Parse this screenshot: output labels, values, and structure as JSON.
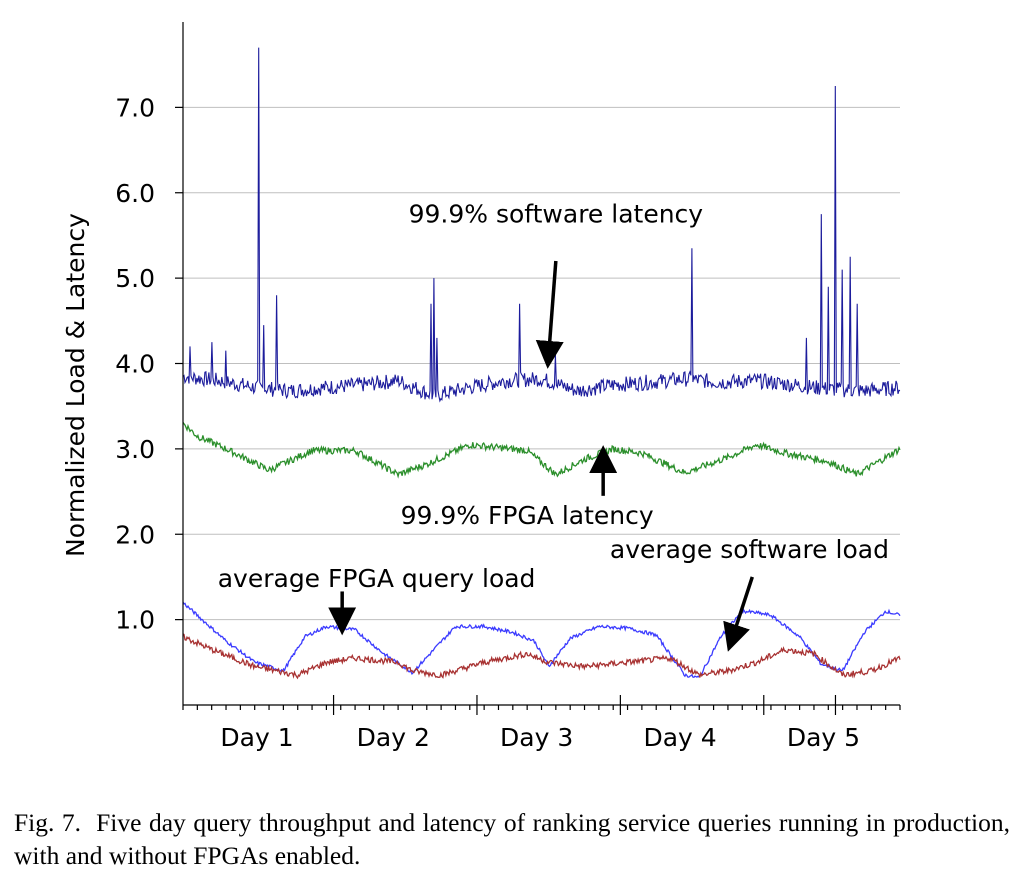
{
  "chart_data": {
    "type": "line",
    "ylabel": "Normalized Load & Latency",
    "xlabel": "",
    "ylim": [
      0,
      8.0
    ],
    "y_ticks": [
      "1.0",
      "2.0",
      "3.0",
      "4.0",
      "5.0",
      "6.0",
      "7.0"
    ],
    "y_tick_values": [
      1.0,
      2.0,
      3.0,
      4.0,
      5.0,
      6.0,
      7.0
    ],
    "x_range": [
      0,
      5.0
    ],
    "x_ticks": [
      "Day 1",
      "Day 2",
      "Day 3",
      "Day 4",
      "Day 5"
    ],
    "x_tick_values": [
      0.6,
      1.55,
      2.55,
      3.55,
      4.55
    ],
    "grid": true,
    "series": [
      {
        "name": "99.9% software latency",
        "color": "#1c1c9c",
        "x": [
          0,
          0.25,
          0.5,
          0.75,
          1.0,
          1.25,
          1.5,
          1.75,
          2.0,
          2.25,
          2.5,
          2.75,
          3.0,
          3.25,
          3.5,
          3.75,
          4.0,
          4.25,
          4.5,
          4.75,
          5.0
        ],
        "values": [
          3.85,
          3.8,
          3.72,
          3.68,
          3.72,
          3.75,
          3.8,
          3.62,
          3.72,
          3.8,
          3.82,
          3.68,
          3.75,
          3.78,
          3.82,
          3.78,
          3.8,
          3.75,
          3.7,
          3.68,
          3.72
        ],
        "spikes": [
          {
            "x": 0.53,
            "y": 7.7
          },
          {
            "x": 0.56,
            "y": 4.45
          },
          {
            "x": 0.65,
            "y": 4.8
          },
          {
            "x": 0.2,
            "y": 4.25
          },
          {
            "x": 0.05,
            "y": 4.2
          },
          {
            "x": 0.3,
            "y": 4.15
          },
          {
            "x": 1.75,
            "y": 5.0
          },
          {
            "x": 1.73,
            "y": 4.7
          },
          {
            "x": 1.77,
            "y": 4.3
          },
          {
            "x": 2.35,
            "y": 4.7
          },
          {
            "x": 2.6,
            "y": 4.1
          },
          {
            "x": 3.55,
            "y": 5.35
          },
          {
            "x": 4.45,
            "y": 5.75
          },
          {
            "x": 4.55,
            "y": 7.25
          },
          {
            "x": 4.6,
            "y": 5.1
          },
          {
            "x": 4.65,
            "y": 5.25
          },
          {
            "x": 4.7,
            "y": 4.7
          },
          {
            "x": 4.5,
            "y": 4.9
          },
          {
            "x": 4.35,
            "y": 4.3
          }
        ]
      },
      {
        "name": "99.9% FPGA latency",
        "color": "#2b8f2b",
        "x": [
          0,
          0.1,
          0.3,
          0.6,
          0.9,
          1.2,
          1.5,
          1.7,
          2.0,
          2.4,
          2.6,
          2.8,
          3.0,
          3.2,
          3.5,
          3.8,
          4.0,
          4.2,
          4.5,
          4.7,
          5.0
        ],
        "values": [
          3.3,
          3.15,
          3.0,
          2.75,
          2.98,
          2.98,
          2.7,
          2.82,
          3.05,
          2.98,
          2.7,
          2.88,
          3.0,
          2.95,
          2.72,
          2.9,
          3.05,
          2.95,
          2.85,
          2.7,
          3.0
        ]
      },
      {
        "name": "average FPGA query load",
        "color": "#3b3bff",
        "x": [
          0,
          0.1,
          0.3,
          0.5,
          0.7,
          0.85,
          1.0,
          1.2,
          1.4,
          1.6,
          1.75,
          1.9,
          2.1,
          2.3,
          2.45,
          2.55,
          2.7,
          2.9,
          3.1,
          3.3,
          3.5,
          3.6,
          3.75,
          3.9,
          4.0,
          4.1,
          4.3,
          4.45,
          4.6,
          4.75,
          4.9,
          5.0
        ],
        "values": [
          1.2,
          1.05,
          0.75,
          0.5,
          0.4,
          0.8,
          0.92,
          0.88,
          0.6,
          0.38,
          0.65,
          0.92,
          0.92,
          0.85,
          0.75,
          0.45,
          0.78,
          0.92,
          0.9,
          0.82,
          0.35,
          0.32,
          0.8,
          1.1,
          1.08,
          1.05,
          0.8,
          0.48,
          0.4,
          0.85,
          1.1,
          1.05
        ]
      },
      {
        "name": "average software load",
        "color": "#a83232",
        "x": [
          0,
          0.2,
          0.5,
          0.8,
          1.0,
          1.2,
          1.5,
          1.6,
          1.8,
          2.1,
          2.4,
          2.55,
          2.8,
          3.1,
          3.4,
          3.6,
          3.8,
          4.0,
          4.2,
          4.4,
          4.6,
          4.8,
          5.0
        ],
        "values": [
          0.8,
          0.65,
          0.45,
          0.35,
          0.5,
          0.55,
          0.5,
          0.4,
          0.35,
          0.5,
          0.6,
          0.5,
          0.45,
          0.5,
          0.55,
          0.35,
          0.4,
          0.5,
          0.65,
          0.6,
          0.35,
          0.4,
          0.55
        ]
      }
    ],
    "annotations": [
      {
        "text": "99.9% software latency",
        "tx": 2.6,
        "ty": 5.65,
        "arrow_from": [
          2.6,
          5.2
        ],
        "arrow_to": [
          2.55,
          4.1
        ]
      },
      {
        "text": "99.9% FPGA latency",
        "tx": 2.4,
        "ty": 2.12,
        "arrow_from": [
          2.93,
          2.45
        ],
        "arrow_to": [
          2.93,
          2.88
        ]
      },
      {
        "text": "average FPGA query load",
        "tx": 1.35,
        "ty": 1.38,
        "arrow_from": [
          1.11,
          1.33
        ],
        "arrow_to": [
          1.11,
          0.98
        ]
      },
      {
        "text": "average software load",
        "tx": 3.95,
        "ty": 1.72,
        "arrow_from": [
          3.97,
          1.5
        ],
        "arrow_to": [
          3.83,
          0.78
        ]
      }
    ]
  },
  "caption": {
    "label": "Fig. 7.",
    "text": "Five day query throughput and latency of ranking service queries running in production, with and without FPGAs enabled."
  }
}
